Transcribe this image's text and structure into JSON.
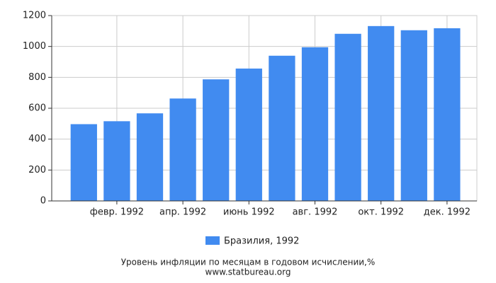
{
  "chart_data": {
    "type": "bar",
    "categories": [
      null,
      "февр. 1992",
      null,
      "апр. 1992",
      null,
      "июнь 1992",
      null,
      "авг. 1992",
      null,
      "окт. 1992",
      null,
      "дек. 1992"
    ],
    "series": [
      {
        "name": "Бразилия, 1992",
        "color": "#418bf0",
        "values": [
          497,
          516,
          567,
          663,
          787,
          857,
          940,
          995,
          1082,
          1132,
          1105,
          1118
        ]
      }
    ],
    "ylim": [
      0,
      1200
    ],
    "yticks": [
      0,
      200,
      400,
      600,
      800,
      1000,
      1200
    ],
    "grid": true,
    "caption": "Уровень инфляции по месяцам в годовом исчислении,%",
    "source": "www.statbureau.org"
  }
}
